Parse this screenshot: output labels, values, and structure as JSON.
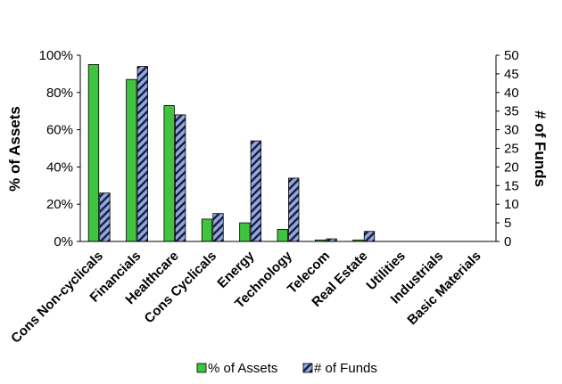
{
  "chart_data": {
    "type": "bar",
    "categories": [
      "Cons Non-cyclicals",
      "Financials",
      "Healthcare",
      "Cons Cyclicals",
      "Energy",
      "Technology",
      "Telecom",
      "Real Estate",
      "Utilities",
      "Industrials",
      "Basic Materials"
    ],
    "series": [
      {
        "name": "% of Assets",
        "axis": "left",
        "values": [
          95,
          87,
          73,
          12,
          10,
          6.5,
          0.8,
          0.8,
          0,
          0,
          0
        ],
        "color": "#3ec43e"
      },
      {
        "name": "# of Funds",
        "axis": "right",
        "values": [
          13,
          47,
          34,
          7.5,
          27,
          17,
          0.7,
          2.7,
          0,
          0,
          0
        ],
        "color": "#8ea9db",
        "pattern": "diagonal-stripes",
        "stripe_color": "#1a1a40"
      }
    ],
    "ylabel": "% of Assets",
    "ylabel_right": "# of Funds",
    "ylim": [
      0,
      100
    ],
    "ylim_right": [
      0,
      50
    ],
    "yticks": [
      "0%",
      "20%",
      "40%",
      "60%",
      "80%",
      "100%"
    ],
    "yticks_right": [
      "0",
      "5",
      "10",
      "15",
      "20",
      "25",
      "30",
      "35",
      "40",
      "45",
      "50"
    ],
    "grid": false,
    "legend_position": "bottom"
  }
}
